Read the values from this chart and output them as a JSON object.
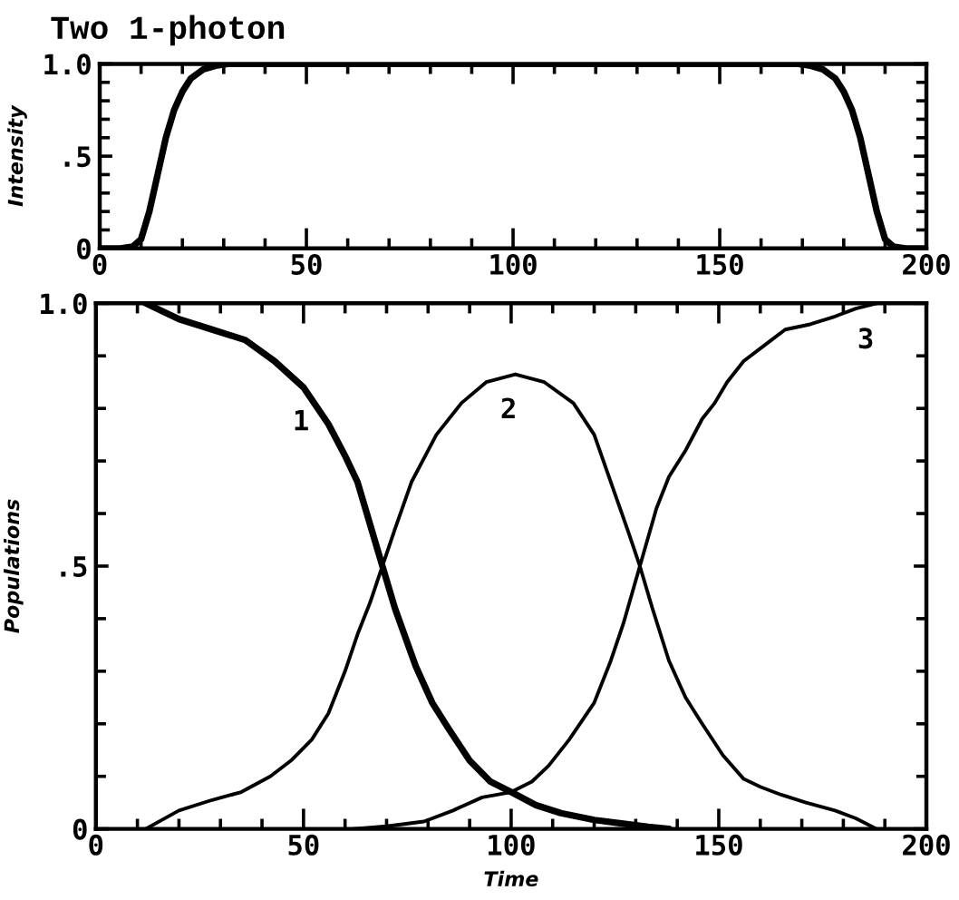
{
  "chart_data": [
    {
      "type": "line",
      "title": "Two 1-photon",
      "ylabel": "Intensity",
      "xlim": [
        0,
        200
      ],
      "ylim": [
        0,
        1
      ],
      "xticks": [
        0,
        {
          "value": 10,
          "label": null
        },
        {
          "value": 20,
          "label": null
        },
        {
          "value": 30,
          "label": null
        },
        {
          "value": 40,
          "label": null
        },
        50,
        {
          "value": 60,
          "label": null
        },
        {
          "value": 70,
          "label": null
        },
        {
          "value": 80,
          "label": null
        },
        {
          "value": 90,
          "label": null
        },
        100,
        {
          "value": 110,
          "label": null
        },
        {
          "value": 120,
          "label": null
        },
        {
          "value": 130,
          "label": null
        },
        {
          "value": 140,
          "label": null
        },
        150,
        {
          "value": 160,
          "label": null
        },
        {
          "value": 170,
          "label": null
        },
        {
          "value": 180,
          "label": null
        },
        {
          "value": 190,
          "label": null
        },
        200
      ],
      "yticks": [
        0,
        {
          "value": 0.1,
          "label": null
        },
        {
          "value": 0.2,
          "label": null
        },
        {
          "value": 0.3,
          "label": null
        },
        {
          "value": 0.4,
          "label": null
        },
        {
          "value": 0.5,
          "label": ".5"
        },
        {
          "value": 0.6,
          "label": null
        },
        {
          "value": 0.7,
          "label": null
        },
        {
          "value": 0.8,
          "label": null
        },
        {
          "value": 0.9,
          "label": null
        },
        {
          "value": 1,
          "label": "1.0"
        }
      ],
      "series": [
        {
          "color": "#000000",
          "x": [
            0,
            5,
            8,
            10,
            12,
            14,
            16,
            18,
            20,
            22,
            25,
            28,
            31,
            169,
            172,
            175,
            178,
            180,
            182,
            184,
            186,
            188,
            190,
            192,
            195,
            200
          ],
          "values": [
            0,
            0,
            0.01,
            0.05,
            0.2,
            0.4,
            0.6,
            0.75,
            0.85,
            0.92,
            0.97,
            0.99,
            1,
            1,
            0.99,
            0.97,
            0.92,
            0.85,
            0.75,
            0.6,
            0.4,
            0.2,
            0.05,
            0.01,
            0,
            0
          ]
        }
      ]
    },
    {
      "type": "line",
      "xlabel": "Time",
      "ylabel": "Populations",
      "xlim": [
        0,
        200
      ],
      "ylim": [
        0,
        1
      ],
      "xticks": [
        0,
        {
          "value": 10,
          "label": null
        },
        {
          "value": 20,
          "label": null
        },
        {
          "value": 30,
          "label": null
        },
        {
          "value": 40,
          "label": null
        },
        50,
        {
          "value": 60,
          "label": null
        },
        {
          "value": 70,
          "label": null
        },
        {
          "value": 80,
          "label": null
        },
        {
          "value": 90,
          "label": null
        },
        100,
        {
          "value": 110,
          "label": null
        },
        {
          "value": 120,
          "label": null
        },
        {
          "value": 130,
          "label": null
        },
        {
          "value": 140,
          "label": null
        },
        150,
        {
          "value": 160,
          "label": null
        },
        {
          "value": 170,
          "label": null
        },
        {
          "value": 180,
          "label": null
        },
        {
          "value": 190,
          "label": null
        },
        200
      ],
      "yticks": [
        0,
        {
          "value": 0.1,
          "label": null
        },
        {
          "value": 0.2,
          "label": null
        },
        {
          "value": 0.3,
          "label": null
        },
        {
          "value": 0.4,
          "label": null
        },
        {
          "value": 0.5,
          "label": ".5"
        },
        {
          "value": 0.6,
          "label": null
        },
        {
          "value": 0.7,
          "label": null
        },
        {
          "value": 0.8,
          "label": null
        },
        {
          "value": 0.9,
          "label": null
        },
        {
          "value": 1,
          "label": "1.0"
        }
      ],
      "series": [
        {
          "name": "1",
          "color": "#000000",
          "x": [
            12,
            20,
            28,
            36,
            43,
            50,
            56,
            60,
            63,
            66,
            69,
            72,
            77,
            81,
            85,
            90,
            95,
            100,
            106,
            112,
            120,
            127,
            133,
            138
          ],
          "values": [
            1.0,
            0.97,
            0.95,
            0.93,
            0.89,
            0.84,
            0.77,
            0.71,
            0.66,
            0.58,
            0.5,
            0.42,
            0.31,
            0.24,
            0.19,
            0.13,
            0.09,
            0.07,
            0.045,
            0.03,
            0.017,
            0.01,
            0.004,
            0
          ]
        },
        {
          "name": "2",
          "color": "#000000",
          "x": [
            12,
            20,
            28,
            35,
            42,
            47,
            52,
            56,
            60,
            63,
            66,
            69,
            72,
            76,
            82,
            88,
            94,
            101,
            108,
            115,
            120,
            124,
            128,
            131,
            134,
            138,
            142,
            146,
            151,
            156,
            160,
            165,
            171,
            178,
            183,
            188
          ],
          "values": [
            0,
            0.035,
            0.055,
            0.07,
            0.1,
            0.13,
            0.17,
            0.22,
            0.3,
            0.37,
            0.43,
            0.5,
            0.57,
            0.66,
            0.75,
            0.81,
            0.85,
            0.865,
            0.85,
            0.81,
            0.75,
            0.66,
            0.57,
            0.5,
            0.42,
            0.32,
            0.25,
            0.2,
            0.14,
            0.095,
            0.08,
            0.065,
            0.05,
            0.035,
            0.02,
            0
          ]
        },
        {
          "name": "3",
          "color": "#000000",
          "x": [
            62,
            70,
            79,
            86,
            93,
            100,
            105,
            109,
            114,
            120,
            124,
            127,
            131,
            135,
            138,
            142,
            146,
            149,
            152,
            156,
            161,
            166,
            172,
            178,
            183,
            188
          ],
          "values": [
            0,
            0.005,
            0.014,
            0.035,
            0.06,
            0.07,
            0.09,
            0.12,
            0.17,
            0.24,
            0.32,
            0.39,
            0.5,
            0.61,
            0.67,
            0.72,
            0.78,
            0.81,
            0.85,
            0.89,
            0.92,
            0.95,
            0.96,
            0.975,
            0.99,
            1.0
          ]
        }
      ]
    }
  ]
}
